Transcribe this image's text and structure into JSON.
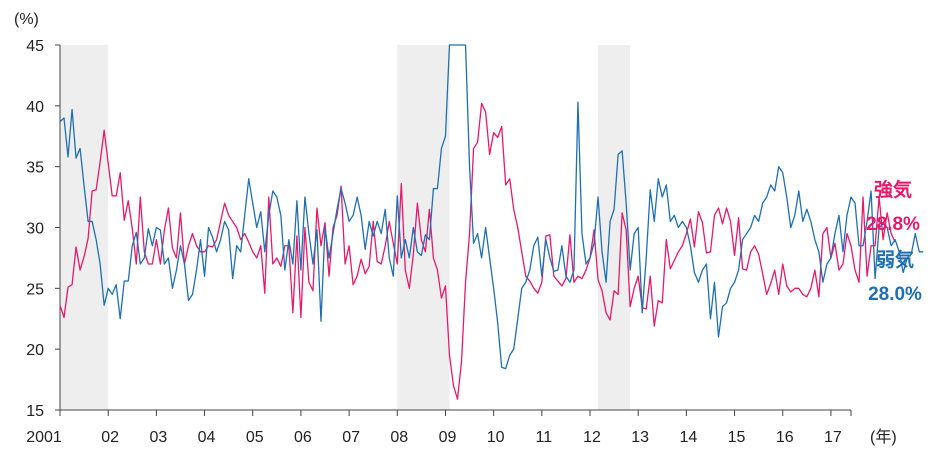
{
  "chart_data": {
    "type": "line",
    "y_unit": "(%)",
    "x_unit": "(年)",
    "ylim": [
      15,
      45
    ],
    "y_ticks": [
      "15",
      "20",
      "25",
      "30",
      "35",
      "40",
      "45"
    ],
    "x_tick_labels": [
      "2001",
      "02",
      "03",
      "04",
      "05",
      "06",
      "07",
      "08",
      "09",
      "10",
      "11",
      "12",
      "13",
      "14",
      "15",
      "16",
      "17"
    ],
    "x_start": "2001-01",
    "x_end": "2017-06",
    "grid": false,
    "shaded_periods": [
      {
        "start": "2001-01",
        "end": "2002-01"
      },
      {
        "start": "2008-01",
        "end": "2009-02"
      },
      {
        "start": "2012-03",
        "end": "2012-11"
      }
    ],
    "series": [
      {
        "name": "強気",
        "label_value": "28.8%",
        "color": "#e8196b",
        "values": [
          23.6,
          22.6,
          25.1,
          25.3,
          28.4,
          26.5,
          27.6,
          29.1,
          33.0,
          33.1,
          35.4,
          38.0,
          35.3,
          32.6,
          32.6,
          34.5,
          30.6,
          32.2,
          29.9,
          27.0,
          32.5,
          28.0,
          27.0,
          27.0,
          29.0,
          27.0,
          29.8,
          31.6,
          28.3,
          27.5,
          31.2,
          27.0,
          28.5,
          29.5,
          28.5,
          28.0,
          28.0,
          28.5,
          28.4,
          29.0,
          30.5,
          32.0,
          31.0,
          30.5,
          30.0,
          29.0,
          29.5,
          28.8,
          28.0,
          27.5,
          28.5,
          24.6,
          32.5,
          27.0,
          27.5,
          26.8,
          28.5,
          28.5,
          23.0,
          29.3,
          22.6,
          30.0,
          25.5,
          24.8,
          31.6,
          28.5,
          30.4,
          26.0,
          30.0,
          31.0,
          33.4,
          27.0,
          28.5,
          25.3,
          26.0,
          27.4,
          26.2,
          26.8,
          30.5,
          27.2,
          27.0,
          28.5,
          30.5,
          28.7,
          27.0,
          33.6,
          26.5,
          25.0,
          27.8,
          32.0,
          29.0,
          28.0,
          31.5,
          27.5,
          26.5,
          24.2,
          25.2,
          19.5,
          17.0,
          15.9,
          19.0,
          25.5,
          29.5,
          36.5,
          37.0,
          40.2,
          39.5,
          36.0,
          37.8,
          37.4,
          38.3,
          33.5,
          34.0,
          31.5,
          30.0,
          28.0,
          26.0,
          25.6,
          25.0,
          24.6,
          25.5,
          29.3,
          29.4,
          26.0,
          25.6,
          25.2,
          25.8,
          29.4,
          25.5,
          26.0,
          25.8,
          26.5,
          27.5,
          29.8,
          25.7,
          24.8,
          23.0,
          22.4,
          24.8,
          24.5,
          31.2,
          29.8,
          23.5,
          25.0,
          26.0,
          23.4,
          23.3,
          26.0,
          21.9,
          24.0,
          23.8,
          29.0,
          26.6,
          27.3,
          28.0,
          28.5,
          29.5,
          30.7,
          28.4,
          31.3,
          30.4,
          27.9,
          28.0,
          31.0,
          31.6,
          30.3,
          31.6,
          30.5,
          27.7,
          30.8,
          26.6,
          26.5,
          28.0,
          28.5,
          27.8,
          26.2,
          24.5,
          25.4,
          26.5,
          24.5,
          27.0,
          25.2,
          24.7,
          25.0,
          25.0,
          24.5,
          24.3,
          25.0,
          26.5,
          24.3,
          29.5,
          30.0,
          27.5,
          28.7,
          26.5,
          27.0,
          29.5,
          28.5,
          26.5,
          25.5,
          32.5,
          26.0,
          28.5,
          28.5,
          32.5,
          29.0,
          31.2,
          29.5,
          28.8
        ]
      },
      {
        "name": "弱気",
        "label_value": "28.0%",
        "color": "#1f6fb4",
        "values": [
          38.7,
          39.0,
          35.8,
          39.7,
          35.7,
          36.5,
          33.4,
          30.5,
          30.5,
          29.0,
          27.0,
          23.6,
          25.0,
          24.5,
          25.3,
          22.5,
          25.6,
          25.6,
          28.5,
          29.6,
          27.0,
          27.5,
          29.9,
          28.5,
          30.0,
          29.8,
          27.0,
          27.5,
          25.0,
          26.5,
          28.5,
          27.0,
          24.0,
          24.5,
          26.5,
          29.0,
          26.0,
          30.0,
          29.2,
          28.0,
          29.0,
          30.5,
          29.8,
          25.8,
          28.5,
          28.0,
          31.0,
          34.0,
          32.0,
          30.0,
          31.3,
          28.0,
          31.0,
          33.0,
          32.5,
          31.0,
          26.5,
          29.0,
          27.0,
          32.2,
          26.5,
          32.5,
          29.5,
          27.0,
          29.8,
          22.3,
          30.0,
          27.5,
          29.5,
          31.5,
          33.2,
          32.0,
          30.5,
          31.0,
          32.5,
          31.0,
          28.2,
          30.5,
          29.3,
          30.5,
          29.5,
          31.5,
          27.5,
          26.0,
          32.6,
          27.5,
          29.0,
          27.5,
          30.0,
          28.0,
          27.7,
          29.4,
          29.0,
          33.2,
          33.2,
          36.5,
          37.5,
          45.0,
          45.0,
          45.0,
          45.0,
          45.0,
          35.0,
          28.7,
          29.5,
          27.5,
          30.0,
          27.5,
          25.0,
          22.2,
          18.5,
          18.4,
          19.5,
          20.0,
          22.5,
          25.0,
          25.5,
          26.5,
          28.5,
          29.2,
          26.0,
          29.0,
          27.5,
          26.4,
          26.5,
          28.5,
          26.0,
          25.5,
          26.5,
          40.3,
          29.5,
          27.0,
          27.5,
          28.7,
          32.5,
          28.0,
          25.5,
          30.5,
          31.5,
          36.0,
          36.3,
          32.0,
          26.5,
          29.5,
          30.0,
          23.0,
          27.5,
          33.1,
          30.5,
          34.0,
          32.5,
          33.5,
          30.5,
          31.0,
          30.0,
          30.5,
          30.0,
          28.5,
          26.3,
          25.5,
          26.5,
          27.0,
          22.5,
          25.5,
          21.0,
          23.5,
          23.8,
          25.0,
          25.5,
          26.5,
          29.0,
          29.5,
          30.0,
          31.0,
          30.5,
          32.0,
          32.5,
          33.5,
          33.0,
          35.0,
          34.5,
          32.5,
          30.0,
          31.0,
          33.0,
          30.5,
          31.5,
          30.5,
          29.0,
          28.0,
          25.5,
          27.0,
          27.5,
          29.5,
          31.0,
          28.0,
          31.0,
          32.5,
          32.0,
          28.5,
          28.5,
          30.5,
          33.0,
          25.8,
          30.0,
          30.3,
          30.0,
          28.5,
          29.0,
          28.0,
          26.3,
          27.5,
          27.8,
          29.5,
          28.0,
          28.0
        ]
      }
    ]
  }
}
